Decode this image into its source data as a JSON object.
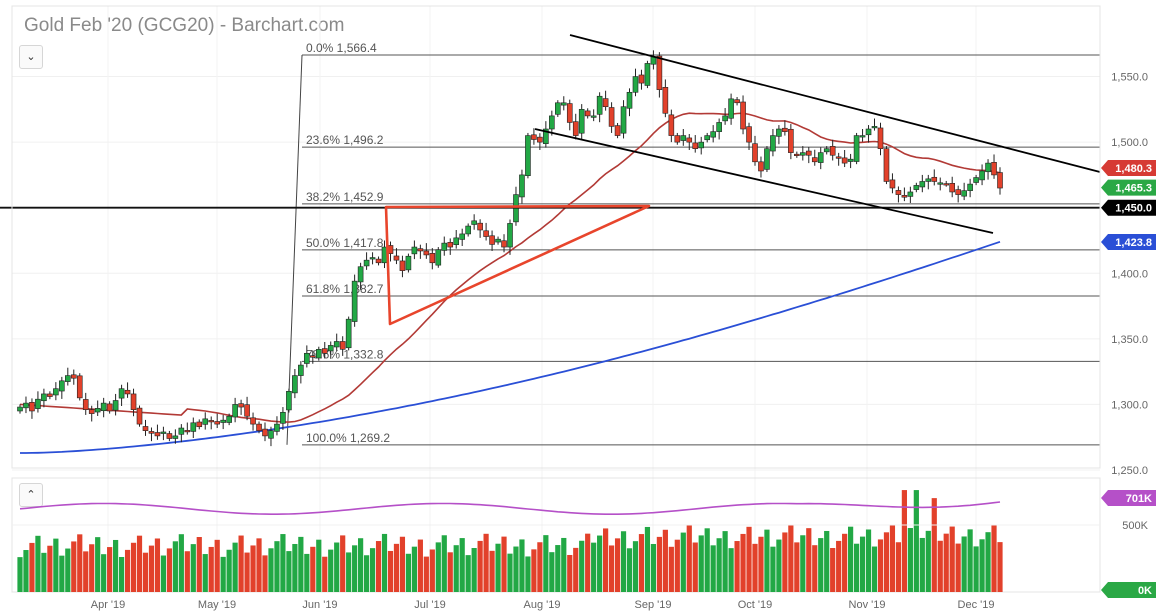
{
  "title": "Gold Feb '20 (GCG20) - Barchart.com",
  "icons": {
    "expand": "chevron-down-icon",
    "collapse": "chevron-up-icon"
  },
  "colors": {
    "up": "#22a845",
    "down": "#e2412b",
    "ma_short": "#b23a36",
    "ma_long": "#2a4fd6",
    "vol_avg": "#b550c8",
    "trend": "#000000",
    "triangle": "#e8452c",
    "axis_text": "#666666"
  },
  "chart_data": [
    {
      "type": "candlestick",
      "title": "Gold Feb '20 (GCG20) - Barchart.com",
      "x_ticks": [
        "Apr '19",
        "May '19",
        "Jun '19",
        "Jul '19",
        "Aug '19",
        "Sep '19",
        "Oct '19",
        "Nov '19",
        "Dec '19"
      ],
      "y_ticks": [
        "1,250.0",
        "1,300.0",
        "1,350.0",
        "1,400.0",
        "1,450.0",
        "1,500.0",
        "1,550.0"
      ],
      "ylim": [
        1245,
        1570
      ],
      "fibonacci": [
        {
          "label": "0.0% 1,566.4",
          "value": 1566.4
        },
        {
          "label": "23.6% 1,496.2",
          "value": 1496.2
        },
        {
          "label": "38.2% 1,452.9",
          "value": 1452.9
        },
        {
          "label": "50.0% 1,417.8",
          "value": 1417.8
        },
        {
          "label": "61.8% 1,382.7",
          "value": 1382.7
        },
        {
          "label": "78.6% 1,332.8",
          "value": 1332.8
        },
        {
          "label": "100.0% 1,269.2",
          "value": 1269.2
        }
      ],
      "price_tags": [
        {
          "label": "1,480.3",
          "value": 1480.3,
          "color": "#d63a34"
        },
        {
          "label": "1,465.3",
          "value": 1465.3,
          "color": "#2aa845"
        },
        {
          "label": "1,450.0",
          "value": 1450.0,
          "color": "#000000"
        },
        {
          "label": "1,423.8",
          "value": 1423.8,
          "color": "#2a4fd6"
        }
      ],
      "horizontal_support": 1450.0,
      "series": [
        {
          "name": "",
          "kind": "close",
          "values": [
            1298,
            1301,
            1295,
            1304,
            1308,
            1306,
            1312,
            1318,
            1322,
            1320,
            1305,
            1296,
            1293,
            1297,
            1301,
            1295,
            1303,
            1312,
            1308,
            1296,
            1285,
            1280,
            1278,
            1276,
            1279,
            1274,
            1276,
            1282,
            1280,
            1286,
            1283,
            1289,
            1287,
            1285,
            1288,
            1291,
            1300,
            1298,
            1291,
            1285,
            1280,
            1276,
            1280,
            1285,
            1294,
            1310,
            1322,
            1330,
            1339,
            1336,
            1342,
            1339,
            1345,
            1348,
            1342,
            1365,
            1394,
            1405,
            1410,
            1412,
            1408,
            1420,
            1415,
            1410,
            1402,
            1413,
            1420,
            1417,
            1414,
            1408,
            1418,
            1423,
            1420,
            1427,
            1430,
            1436,
            1440,
            1433,
            1428,
            1422,
            1426,
            1420,
            1438,
            1460,
            1475,
            1505,
            1502,
            1500,
            1510,
            1520,
            1530,
            1530,
            1515,
            1505,
            1525,
            1520,
            1520,
            1535,
            1527,
            1512,
            1505,
            1527,
            1538,
            1550,
            1545,
            1560,
            1565,
            1540,
            1522,
            1505,
            1500,
            1505,
            1500,
            1495,
            1500,
            1505,
            1508,
            1515,
            1520,
            1533,
            1530,
            1510,
            1500,
            1485,
            1478,
            1495,
            1505,
            1510,
            1508,
            1492,
            1490,
            1492,
            1490,
            1485,
            1492,
            1495,
            1490,
            1488,
            1484,
            1487,
            1505,
            1505,
            1510,
            1512,
            1495,
            1470,
            1465,
            1460,
            1458,
            1462,
            1467,
            1470,
            1472,
            1470,
            1469,
            1468,
            1462,
            1460,
            1463,
            1468,
            1473,
            1478,
            1484,
            1475,
            1465
          ]
        }
      ]
    },
    {
      "type": "bar",
      "title": "",
      "y_ticks": [
        "500K"
      ],
      "value_tags": [
        {
          "label": "701K",
          "value": 701,
          "color": "#b550c8"
        },
        {
          "label": "0K",
          "value": 0,
          "color": "#2aa845"
        }
      ],
      "ylim": [
        0,
        850
      ],
      "unit": "K"
    }
  ]
}
